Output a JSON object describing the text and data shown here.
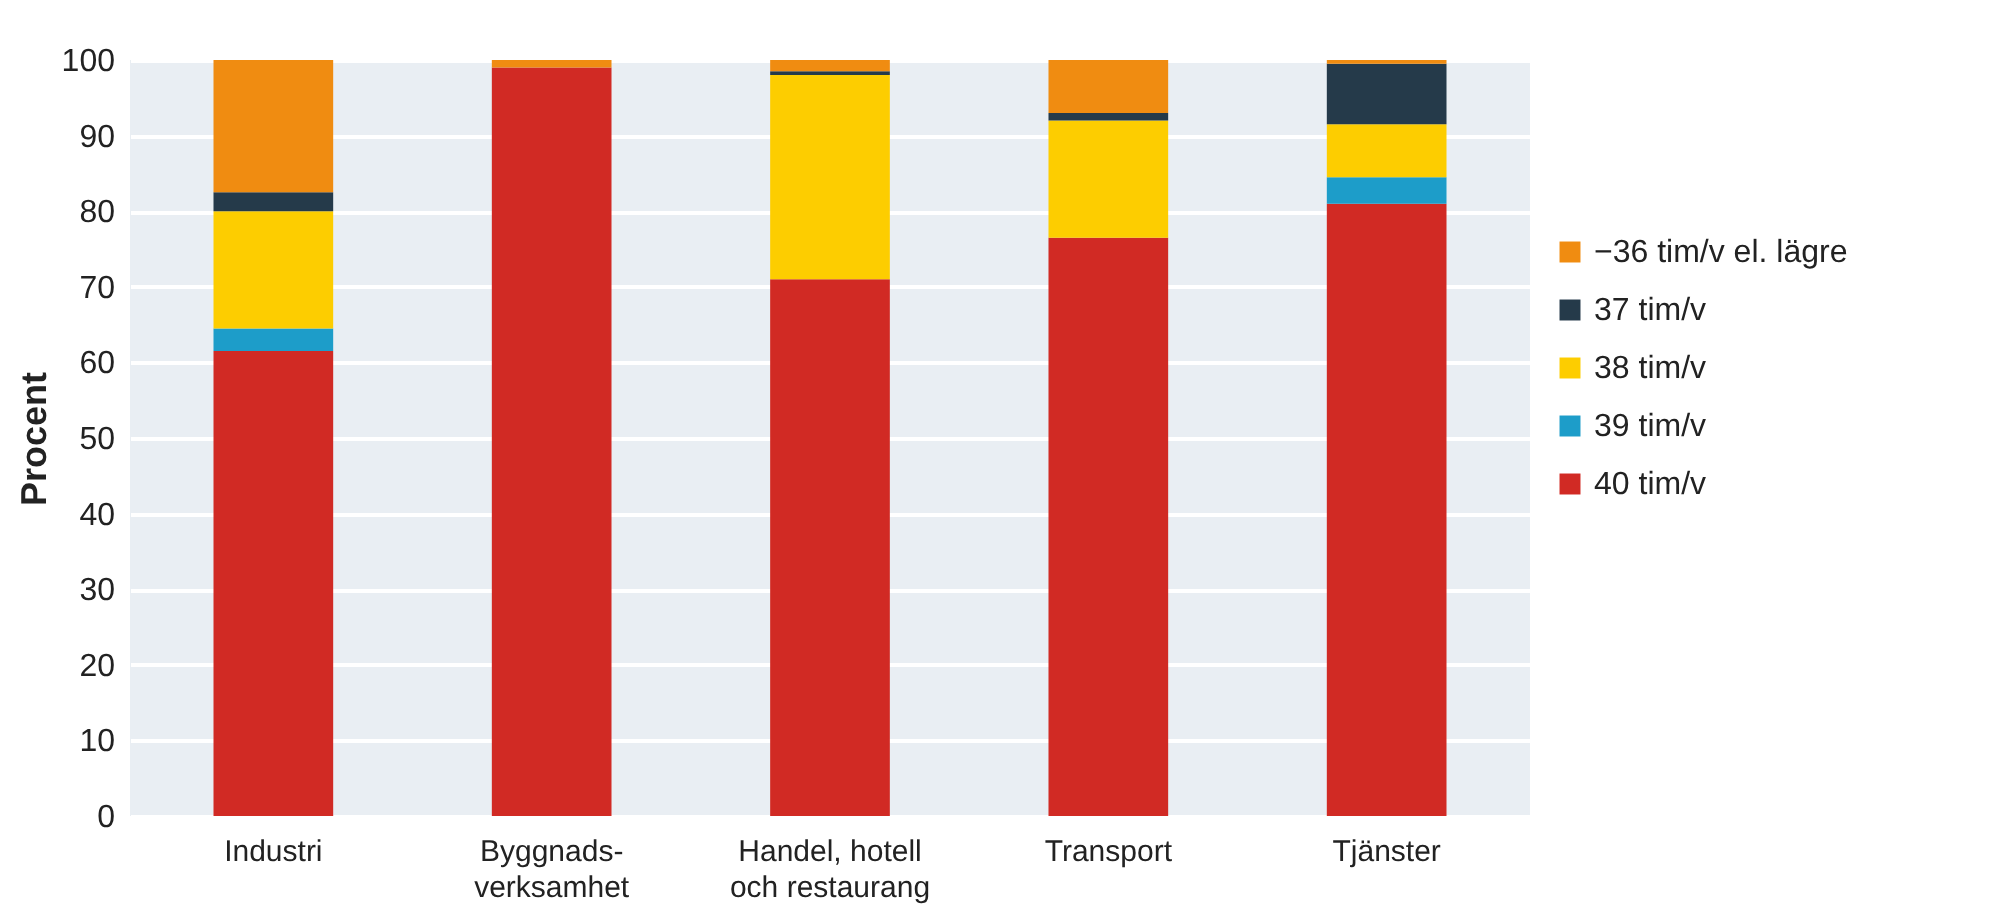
{
  "chart_data": {
    "type": "bar",
    "stacked": true,
    "ylabel": "Procent",
    "categories": [
      "Industri",
      "Byggnads-verksamhet",
      "Handel, hotell och restaurang",
      "Transport",
      "Tjänster"
    ],
    "series": [
      {
        "name": "40 tim/v",
        "color": "#d12a24",
        "values": [
          61.5,
          99,
          71,
          76.5,
          81
        ]
      },
      {
        "name": "39 tim/v",
        "color": "#1d9dc9",
        "values": [
          3,
          0,
          0,
          0,
          3.5
        ]
      },
      {
        "name": "38 tim/v",
        "color": "#fdcd00",
        "values": [
          15.5,
          0,
          27,
          15.5,
          7
        ]
      },
      {
        "name": "37 tim/v",
        "color": "#253a4a",
        "values": [
          2.5,
          0,
          0.5,
          1,
          8
        ]
      },
      {
        "name": "−36 tim/v el. lägre",
        "color": "#f08c11",
        "values": [
          17.5,
          1,
          1.5,
          7,
          0.5
        ]
      }
    ],
    "ylim": [
      0,
      100
    ],
    "yticks": [
      0,
      10,
      20,
      30,
      40,
      50,
      60,
      70,
      80,
      90,
      100
    ],
    "grid": "y",
    "legend": "right"
  }
}
